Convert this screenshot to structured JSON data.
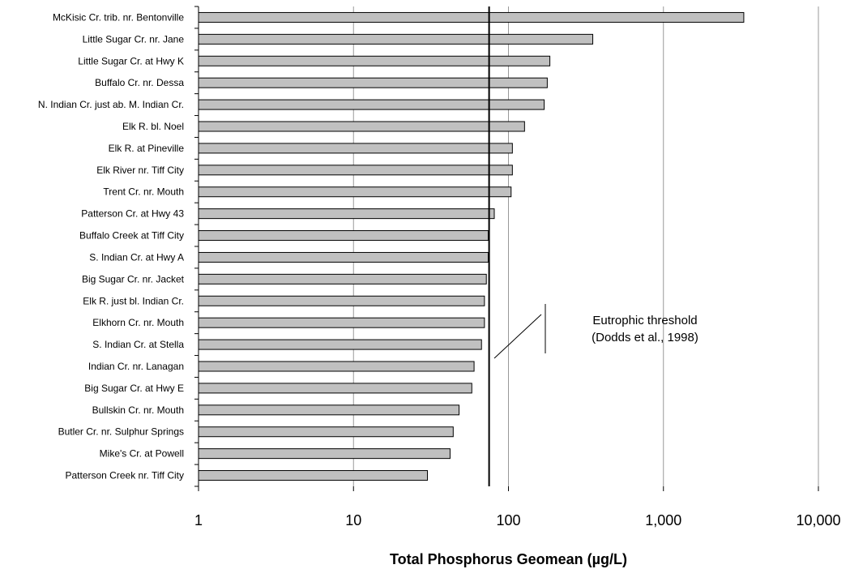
{
  "chart_data": {
    "type": "bar",
    "orientation": "horizontal",
    "x_scale": "log",
    "xlim": [
      1,
      10000
    ],
    "grid": "vertical-major",
    "categories": [
      "McKisic Cr. trib. nr. Bentonville",
      "Little Sugar Cr. nr. Jane",
      "Little Sugar Cr. at Hwy K",
      "Buffalo Cr. nr. Dessa",
      "N. Indian Cr. just ab. M. Indian Cr.",
      "Elk R. bl. Noel",
      "Elk R. at Pineville",
      "Elk River nr. Tiff City",
      "Trent Cr. nr. Mouth",
      "Patterson Cr. at Hwy 43",
      "Buffalo Creek at Tiff City",
      "S. Indian Cr. at Hwy A",
      "Big Sugar Cr. nr. Jacket",
      "Elk R. just bl. Indian Cr.",
      "Elkhorn Cr. nr. Mouth",
      "S. Indian Cr. at Stella",
      "Indian Cr. nr. Lanagan",
      "Big Sugar Cr. at Hwy E",
      "Bullskin Cr. nr. Mouth",
      "Butler Cr. nr. Sulphur Springs",
      "Mike's Cr. at Powell",
      "Patterson Creek nr. Tiff City"
    ],
    "values": [
      3300,
      350,
      185,
      178,
      170,
      127,
      106,
      106,
      104,
      81,
      74,
      74,
      72,
      70,
      70,
      67,
      60,
      58,
      48,
      44,
      42,
      30
    ],
    "xticks": [
      1,
      10,
      100,
      1000,
      10000
    ],
    "xtick_labels": [
      "1",
      "10",
      "100",
      "1,000",
      "10,000"
    ],
    "xlabel": "Total Phosphorus Geomean (µg/L)",
    "ylabel": "",
    "title": "",
    "threshold": {
      "value": 75,
      "label_line1": "Eutrophic threshold",
      "label_line2": "(Dodds et al., 1998)"
    },
    "colors": {
      "bar_fill": "#c0c0c0",
      "bar_stroke": "#000000",
      "grid": "#999999",
      "threshold": "#000000"
    }
  }
}
